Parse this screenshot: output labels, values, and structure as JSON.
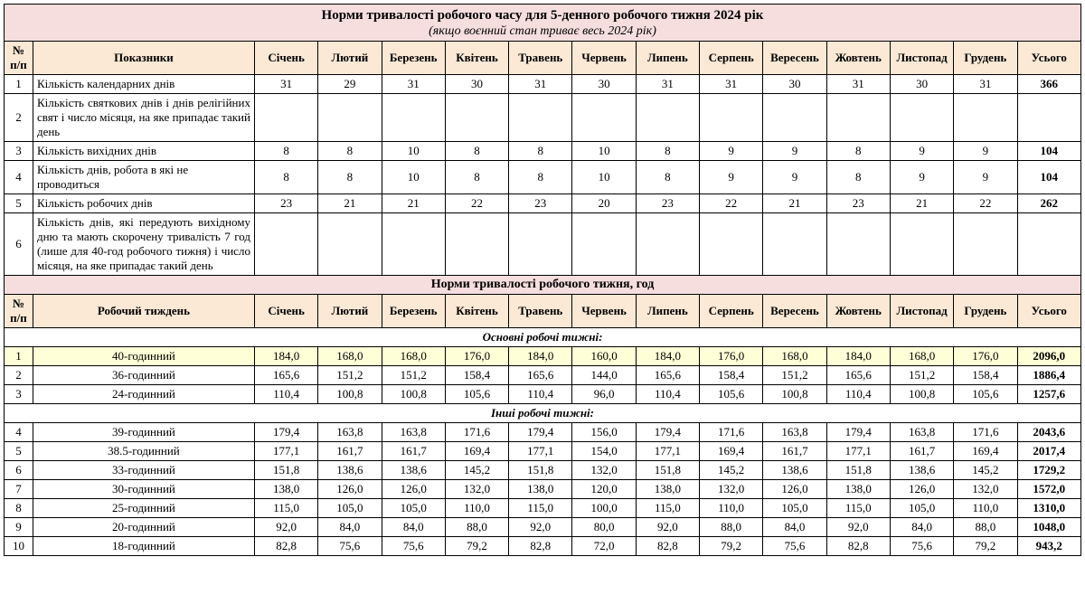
{
  "title": "Норми тривалості робочого часу для 5-денного робочого тижня 2024 рік",
  "subtitle": "(якщо воєнний стан триває весь 2024 рік)",
  "header1": {
    "num": "№ п/п",
    "ind": "Показники",
    "months": [
      "Січень",
      "Лютий",
      "Березень",
      "Квітень",
      "Травень",
      "Червень",
      "Липень",
      "Серпень",
      "Вересень",
      "Жовтень",
      "Листопад",
      "Грудень"
    ],
    "total": "Усього"
  },
  "rows1": [
    {
      "n": "1",
      "ind": "Кількість календарних днів",
      "v": [
        "31",
        "29",
        "31",
        "30",
        "31",
        "30",
        "31",
        "31",
        "30",
        "31",
        "30",
        "31"
      ],
      "t": "366"
    },
    {
      "n": "2",
      "ind": "Кількість святкових днів і днів релігійних свят і число місяця, на яке припадає такий день",
      "v": [
        "",
        "",
        "",
        "",
        "",
        "",
        "",
        "",
        "",
        "",
        "",
        ""
      ],
      "t": "",
      "tall": true
    },
    {
      "n": "3",
      "ind": "Кількість вихідних днів",
      "v": [
        "8",
        "8",
        "10",
        "8",
        "8",
        "10",
        "8",
        "9",
        "9",
        "8",
        "9",
        "9"
      ],
      "t": "104"
    },
    {
      "n": "4",
      "ind": "Кількість днів, робота в які не проводиться",
      "v": [
        "8",
        "8",
        "10",
        "8",
        "8",
        "10",
        "8",
        "9",
        "9",
        "8",
        "9",
        "9"
      ],
      "t": "104"
    },
    {
      "n": "5",
      "ind": "Кількість робочих днів",
      "v": [
        "23",
        "21",
        "21",
        "22",
        "23",
        "20",
        "23",
        "22",
        "21",
        "23",
        "21",
        "22"
      ],
      "t": "262"
    },
    {
      "n": "6",
      "ind": "Кількість днів, які передують вихідному дню та мають скорочену тривалість 7 год (лише для 40-год робочого тижня) і число місяця, на яке припадає такий день",
      "v": [
        "",
        "",
        "",
        "",
        "",
        "",
        "",
        "",
        "",
        "",
        "",
        ""
      ],
      "t": "",
      "tall": true
    }
  ],
  "section2_title": "Норми тривалості робочого тижня, год",
  "header2": {
    "num": "№ п/п",
    "ind": "Робочий тиждень",
    "months": [
      "Січень",
      "Лютий",
      "Березень",
      "Квітень",
      "Травень",
      "Червень",
      "Липень",
      "Серпень",
      "Вересень",
      "Жовтень",
      "Листопад",
      "Грудень"
    ],
    "total": "Усього"
  },
  "sub_main": "Основні робочі тижні:",
  "rows_main": [
    {
      "n": "1",
      "ind": "40-годинний",
      "v": [
        "184,0",
        "168,0",
        "168,0",
        "176,0",
        "184,0",
        "160,0",
        "184,0",
        "176,0",
        "168,0",
        "184,0",
        "168,0",
        "176,0"
      ],
      "t": "2096,0",
      "hl": true
    },
    {
      "n": "2",
      "ind": "36-годинний",
      "v": [
        "165,6",
        "151,2",
        "151,2",
        "158,4",
        "165,6",
        "144,0",
        "165,6",
        "158,4",
        "151,2",
        "165,6",
        "151,2",
        "158,4"
      ],
      "t": "1886,4"
    },
    {
      "n": "3",
      "ind": "24-годинний",
      "v": [
        "110,4",
        "100,8",
        "100,8",
        "105,6",
        "110,4",
        "96,0",
        "110,4",
        "105,6",
        "100,8",
        "110,4",
        "100,8",
        "105,6"
      ],
      "t": "1257,6"
    }
  ],
  "sub_other": "Інші робочі тижні:",
  "rows_other": [
    {
      "n": "4",
      "ind": "39-годинний",
      "v": [
        "179,4",
        "163,8",
        "163,8",
        "171,6",
        "179,4",
        "156,0",
        "179,4",
        "171,6",
        "163,8",
        "179,4",
        "163,8",
        "171,6"
      ],
      "t": "2043,6"
    },
    {
      "n": "5",
      "ind": "38.5-годинний",
      "v": [
        "177,1",
        "161,7",
        "161,7",
        "169,4",
        "177,1",
        "154,0",
        "177,1",
        "169,4",
        "161,7",
        "177,1",
        "161,7",
        "169,4"
      ],
      "t": "2017,4"
    },
    {
      "n": "6",
      "ind": "33-годинний",
      "v": [
        "151,8",
        "138,6",
        "138,6",
        "145,2",
        "151,8",
        "132,0",
        "151,8",
        "145,2",
        "138,6",
        "151,8",
        "138,6",
        "145,2"
      ],
      "t": "1729,2"
    },
    {
      "n": "7",
      "ind": "30-годинний",
      "v": [
        "138,0",
        "126,0",
        "126,0",
        "132,0",
        "138,0",
        "120,0",
        "138,0",
        "132,0",
        "126,0",
        "138,0",
        "126,0",
        "132,0"
      ],
      "t": "1572,0"
    },
    {
      "n": "8",
      "ind": "25-годинний",
      "v": [
        "115,0",
        "105,0",
        "105,0",
        "110,0",
        "115,0",
        "100,0",
        "115,0",
        "110,0",
        "105,0",
        "115,0",
        "105,0",
        "110,0"
      ],
      "t": "1310,0"
    },
    {
      "n": "9",
      "ind": "20-годинний",
      "v": [
        "92,0",
        "84,0",
        "84,0",
        "88,0",
        "92,0",
        "80,0",
        "92,0",
        "88,0",
        "84,0",
        "92,0",
        "84,0",
        "88,0"
      ],
      "t": "1048,0"
    },
    {
      "n": "10",
      "ind": "18-годинний",
      "v": [
        "82,8",
        "75,6",
        "75,6",
        "79,2",
        "82,8",
        "72,0",
        "82,8",
        "79,2",
        "75,6",
        "82,8",
        "75,6",
        "79,2"
      ],
      "t": "943,2"
    }
  ]
}
